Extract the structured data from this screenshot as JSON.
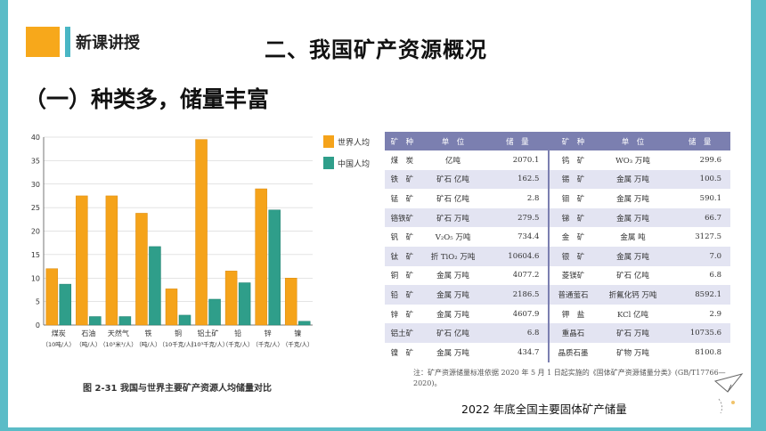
{
  "header": {
    "tag": "新课讲授",
    "title": "二、我国矿产资源概况",
    "subtitle": "（一）种类多，储量丰富"
  },
  "colors": {
    "accent_orange": "#f7a81b",
    "accent_teal": "#49b6c4",
    "frame": "#5bbcc7",
    "world_bar": "#f5a31a",
    "china_bar": "#2f9e8a",
    "table_header": "#7b7fb0"
  },
  "figure": {
    "caption": "图 2-31   我国与世界主要矿产资源人均储量对比"
  },
  "chart_data": {
    "type": "bar",
    "categories": [
      "煤炭",
      "石油",
      "天然气",
      "铁",
      "铜",
      "铝土矿",
      "铅",
      "锌",
      "镍"
    ],
    "category_units": [
      "（10吨/人）",
      "（吨/人）",
      "（10³米³/人）",
      "（吨/人）",
      "（10千克/人）",
      "（10³千克/人）",
      "（千克/人）",
      "（千克/人）",
      "（千克/人）"
    ],
    "series": [
      {
        "name": "世界人均",
        "values": [
          12,
          27.5,
          27.5,
          23.8,
          7.7,
          39.5,
          11.5,
          29,
          10
        ]
      },
      {
        "name": "中国人均",
        "values": [
          8.7,
          1.8,
          1.8,
          16.7,
          2.1,
          5.5,
          9,
          24.5,
          0.8
        ]
      }
    ],
    "yticks": [
      0,
      5,
      10,
      15,
      20,
      25,
      30,
      35,
      40
    ],
    "ylim": [
      0,
      40
    ],
    "legend": "right"
  },
  "table": {
    "headers": [
      "矿　种",
      "单　位",
      "储　量",
      "矿　种",
      "单　位",
      "储　量"
    ],
    "rows": [
      [
        "煤　炭",
        "亿吨",
        "2070.1",
        "钨　矿",
        "WO₃ 万吨",
        "299.6"
      ],
      [
        "铁　矿",
        "矿石 亿吨",
        "162.5",
        "锡　矿",
        "金属 万吨",
        "100.5"
      ],
      [
        "锰　矿",
        "矿石 亿吨",
        "2.8",
        "钼　矿",
        "金属 万吨",
        "590.1"
      ],
      [
        "铬铁矿",
        "矿石 万吨",
        "279.5",
        "锑　矿",
        "金属 万吨",
        "66.7"
      ],
      [
        "钒　矿",
        "V₂O₅ 万吨",
        "734.4",
        "金　矿",
        "金属 吨",
        "3127.5"
      ],
      [
        "钛　矿",
        "折 TiO₂ 万吨",
        "10604.6",
        "银　矿",
        "金属 万吨",
        "7.0"
      ],
      [
        "铜　矿",
        "金属 万吨",
        "4077.2",
        "菱镁矿",
        "矿石 亿吨",
        "6.8"
      ],
      [
        "铅　矿",
        "金属 万吨",
        "2186.5",
        "普通萤石",
        "折氟化钙 万吨",
        "8592.1"
      ],
      [
        "锌　矿",
        "金属 万吨",
        "4607.9",
        "钾　盐",
        "KCl 亿吨",
        "2.9"
      ],
      [
        "铝土矿",
        "矿石 亿吨",
        "6.8",
        "重晶石",
        "矿石 万吨",
        "10735.6"
      ],
      [
        "镍　矿",
        "金属 万吨",
        "434.7",
        "晶质石墨",
        "矿物 万吨",
        "8100.8"
      ]
    ],
    "note": "注：矿产资源储量标准依据 2020 年 5 月 1 日起实施的《固体矿产资源储量分类》(GB/T17766—2020)。"
  },
  "bottom_caption": "2022 年底全国主要固体矿产储量"
}
